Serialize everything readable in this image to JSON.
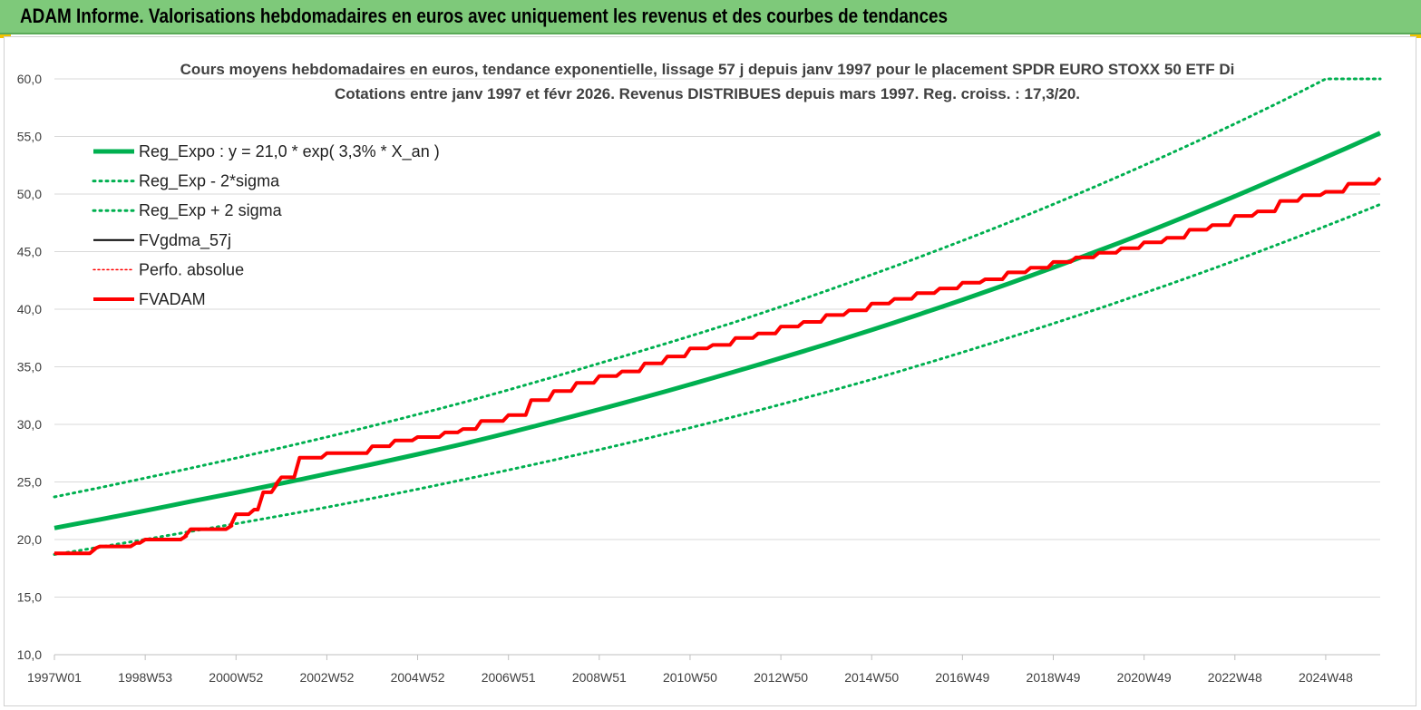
{
  "header": {
    "title": "ADAM Informe. Valorisations hebdomadaires en euros avec uniquement les revenus et des courbes de tendances"
  },
  "chart_data": {
    "type": "line",
    "title_line1": "Cours moyens hebdomadaires en euros, tendance exponentielle, lissage 57 j depuis janv 1997  pour le placement SPDR EURO STOXX 50 ETF Di",
    "title_line2": "Cotations entre janv 1997 et févr 2026. Revenus DISTRIBUES depuis mars 1997. Reg. croiss. : 17,3/20.",
    "xlabel": "",
    "ylabel": "",
    "ylim": [
      10,
      60
    ],
    "yticks": [
      "10,0",
      "15,0",
      "20,0",
      "25,0",
      "30,0",
      "35,0",
      "40,0",
      "45,0",
      "50,0",
      "55,0",
      "60,0"
    ],
    "xlim": [
      1997.0,
      2026.2
    ],
    "xticks": [
      {
        "label": "1997W01",
        "x": 1997.0
      },
      {
        "label": "1998W53",
        "x": 1999.0
      },
      {
        "label": "2000W52",
        "x": 2001.0
      },
      {
        "label": "2002W52",
        "x": 2003.0
      },
      {
        "label": "2004W52",
        "x": 2005.0
      },
      {
        "label": "2006W51",
        "x": 2007.0
      },
      {
        "label": "2008W51",
        "x": 2009.0
      },
      {
        "label": "2010W50",
        "x": 2011.0
      },
      {
        "label": "2012W50",
        "x": 2013.0
      },
      {
        "label": "2014W50",
        "x": 2015.0
      },
      {
        "label": "2016W49",
        "x": 2017.0
      },
      {
        "label": "2018W49",
        "x": 2019.0
      },
      {
        "label": "2020W49",
        "x": 2021.0
      },
      {
        "label": "2022W48",
        "x": 2023.0
      },
      {
        "label": "2024W48",
        "x": 2025.0
      }
    ],
    "grid": true,
    "legend_position": "top-left",
    "series": [
      {
        "name": "Reg_Expo : y = 21,0 * exp( 3,3% *  X_an )",
        "color": "#00b050",
        "style": "solid-thick",
        "x": [
          1997.0,
          2000.0,
          2003.0,
          2006.0,
          2009.0,
          2012.0,
          2015.0,
          2018.0,
          2021.0,
          2024.0,
          2026.2
        ],
        "values": [
          21.0,
          23.3,
          25.7,
          28.3,
          31.3,
          34.6,
          38.2,
          42.2,
          46.6,
          51.5,
          55.3
        ]
      },
      {
        "name": "Reg_Exp - 2*sigma",
        "color": "#00b050",
        "style": "dotted",
        "x": [
          1997.0,
          2000.0,
          2003.0,
          2006.0,
          2009.0,
          2012.0,
          2015.0,
          2018.0,
          2021.0,
          2024.0,
          2026.2
        ],
        "values": [
          18.7,
          20.7,
          22.8,
          25.2,
          27.8,
          30.7,
          33.9,
          37.5,
          41.4,
          45.7,
          49.1
        ]
      },
      {
        "name": "Reg_Exp + 2 sigma",
        "color": "#00b050",
        "style": "dotted",
        "x": [
          1997.0,
          2000.0,
          2003.0,
          2006.0,
          2009.0,
          2012.0,
          2015.0,
          2018.0,
          2021.0,
          2024.0,
          2025.0,
          2026.2
        ],
        "values": [
          23.7,
          26.2,
          28.9,
          31.9,
          35.3,
          38.9,
          43.0,
          47.5,
          52.5,
          58.0,
          60.0,
          60.0
        ]
      },
      {
        "name": "FVgdma_57j",
        "color": "#000000",
        "style": "solid-thin",
        "x": [
          1997.0,
          1997.9,
          1998.0,
          1998.8,
          1999.0,
          1999.9,
          2000.0,
          2000.9,
          2001.0,
          2001.4,
          2001.6,
          2001.9,
          2002.0,
          2002.4,
          2003.0,
          2004.0,
          2004.5,
          2005.0,
          2005.6,
          2006.0,
          2006.4,
          2007.0,
          2007.5,
          2008.0,
          2008.5,
          2009.0,
          2009.5,
          2010.0,
          2010.5,
          2011.0,
          2011.5,
          2012.0,
          2012.5,
          2013.0,
          2013.5,
          2014.0,
          2014.5,
          2015.0,
          2015.5,
          2016.0,
          2016.5,
          2017.0,
          2017.5,
          2018.0,
          2018.5,
          2019.0,
          2019.5,
          2020.0,
          2020.5,
          2021.0,
          2021.5,
          2022.0,
          2022.5,
          2023.0,
          2023.5,
          2024.0,
          2024.5,
          2025.0,
          2025.5,
          2026.2
        ],
        "values": [
          18.8,
          19.2,
          19.4,
          19.7,
          20.0,
          20.3,
          20.9,
          21.2,
          22.2,
          22.6,
          24.1,
          24.8,
          25.4,
          27.1,
          27.5,
          28.1,
          28.6,
          28.9,
          29.3,
          29.6,
          30.3,
          30.8,
          32.1,
          32.9,
          33.6,
          34.2,
          34.6,
          35.3,
          35.9,
          36.6,
          36.9,
          37.5,
          37.9,
          38.5,
          38.9,
          39.5,
          39.9,
          40.5,
          40.9,
          41.4,
          41.8,
          42.3,
          42.6,
          43.2,
          43.6,
          44.1,
          44.5,
          44.9,
          45.3,
          45.8,
          46.2,
          46.9,
          47.3,
          48.1,
          48.5,
          49.4,
          49.9,
          50.2,
          50.9,
          51.4
        ]
      },
      {
        "name": "Perfo. absolue",
        "color": "#ff0000",
        "style": "dotted",
        "x": [
          1997.0,
          1997.9,
          1998.0,
          1998.8,
          1999.0,
          1999.9,
          2000.0,
          2000.9,
          2001.0,
          2001.4,
          2001.6,
          2001.9,
          2002.0,
          2002.4,
          2003.0,
          2004.0,
          2004.5,
          2005.0,
          2005.6,
          2006.0,
          2006.4,
          2007.0,
          2007.5,
          2008.0,
          2008.5,
          2009.0,
          2009.5,
          2010.0,
          2010.5,
          2011.0,
          2011.5,
          2012.0,
          2012.5,
          2013.0,
          2013.5,
          2014.0,
          2014.5,
          2015.0,
          2015.5,
          2016.0,
          2016.5,
          2017.0,
          2017.5,
          2018.0,
          2018.5,
          2019.0,
          2019.5,
          2020.0,
          2020.5,
          2021.0,
          2021.5,
          2022.0,
          2022.5,
          2023.0,
          2023.5,
          2024.0,
          2024.5,
          2025.0,
          2025.5,
          2026.2
        ],
        "values": [
          18.8,
          19.2,
          19.4,
          19.7,
          20.0,
          20.3,
          20.9,
          21.2,
          22.2,
          22.6,
          24.1,
          24.8,
          25.4,
          27.1,
          27.5,
          28.1,
          28.6,
          28.9,
          29.3,
          29.6,
          30.3,
          30.8,
          32.1,
          32.9,
          33.6,
          34.2,
          34.6,
          35.3,
          35.9,
          36.6,
          36.9,
          37.5,
          37.9,
          38.5,
          38.9,
          39.5,
          39.9,
          40.5,
          40.9,
          41.4,
          41.8,
          42.3,
          42.6,
          43.2,
          43.6,
          44.1,
          44.5,
          44.9,
          45.3,
          45.8,
          46.2,
          46.9,
          47.3,
          48.1,
          48.5,
          49.4,
          49.9,
          50.2,
          50.9,
          51.4
        ]
      },
      {
        "name": "FVADAM",
        "color": "#ff0000",
        "style": "solid-thick",
        "x": [
          1997.0,
          1997.9,
          1998.0,
          1998.8,
          1999.0,
          1999.9,
          2000.0,
          2000.9,
          2001.0,
          2001.4,
          2001.6,
          2001.9,
          2002.0,
          2002.4,
          2003.0,
          2004.0,
          2004.5,
          2005.0,
          2005.6,
          2006.0,
          2006.4,
          2007.0,
          2007.5,
          2008.0,
          2008.5,
          2009.0,
          2009.5,
          2010.0,
          2010.5,
          2011.0,
          2011.5,
          2012.0,
          2012.5,
          2013.0,
          2013.5,
          2014.0,
          2014.5,
          2015.0,
          2015.5,
          2016.0,
          2016.5,
          2017.0,
          2017.5,
          2018.0,
          2018.5,
          2019.0,
          2019.5,
          2020.0,
          2020.5,
          2021.0,
          2021.5,
          2022.0,
          2022.5,
          2023.0,
          2023.5,
          2024.0,
          2024.5,
          2025.0,
          2025.5,
          2026.2
        ],
        "values": [
          18.8,
          19.2,
          19.4,
          19.7,
          20.0,
          20.3,
          20.9,
          21.2,
          22.2,
          22.6,
          24.1,
          24.8,
          25.4,
          27.1,
          27.5,
          28.1,
          28.6,
          28.9,
          29.3,
          29.6,
          30.3,
          30.8,
          32.1,
          32.9,
          33.6,
          34.2,
          34.6,
          35.3,
          35.9,
          36.6,
          36.9,
          37.5,
          37.9,
          38.5,
          38.9,
          39.5,
          39.9,
          40.5,
          40.9,
          41.4,
          41.8,
          42.3,
          42.6,
          43.2,
          43.6,
          44.1,
          44.5,
          44.9,
          45.3,
          45.8,
          46.2,
          46.9,
          47.3,
          48.1,
          48.5,
          49.4,
          49.9,
          50.2,
          50.9,
          51.4
        ]
      }
    ]
  }
}
